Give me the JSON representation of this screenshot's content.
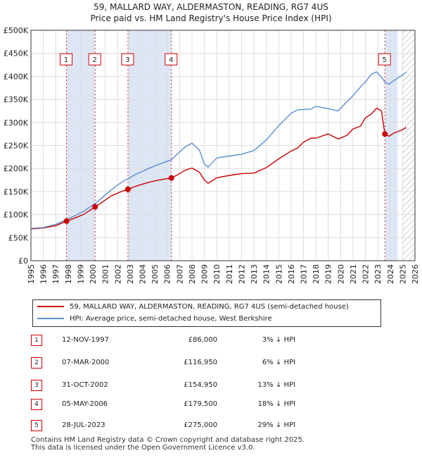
{
  "title_line1": "59, MALLARD WAY, ALDERMASTON, READING, RG7 4US",
  "title_line2": "Price paid vs. HM Land Registry's House Price Index (HPI)",
  "colors": {
    "property": "#cc0000",
    "hpi": "#5b8ed6",
    "shade": "#dde6f5",
    "marker_box": "#cc0000",
    "grid": "#dddddd"
  },
  "chart_data": {
    "type": "line",
    "xlim": [
      1995,
      2026
    ],
    "ylim": [
      0,
      500000
    ],
    "x_ticks": [
      1995,
      1996,
      1997,
      1998,
      1999,
      2000,
      2001,
      2002,
      2003,
      2004,
      2005,
      2006,
      2007,
      2008,
      2009,
      2010,
      2011,
      2012,
      2013,
      2014,
      2015,
      2016,
      2017,
      2018,
      2019,
      2020,
      2021,
      2022,
      2023,
      2024,
      2025,
      2026
    ],
    "y_ticks": [
      {
        "value": 0,
        "label": "£0"
      },
      {
        "value": 50000,
        "label": "£50K"
      },
      {
        "value": 100000,
        "label": "£100K"
      },
      {
        "value": 150000,
        "label": "£150K"
      },
      {
        "value": 200000,
        "label": "£200K"
      },
      {
        "value": 250000,
        "label": "£250K"
      },
      {
        "value": 300000,
        "label": "£300K"
      },
      {
        "value": 350000,
        "label": "£350K"
      },
      {
        "value": 400000,
        "label": "£400K"
      },
      {
        "value": 450000,
        "label": "£450K"
      },
      {
        "value": 500000,
        "label": "£500K"
      }
    ],
    "shaded_ranges": [
      [
        1997.87,
        2000.18
      ],
      [
        2002.83,
        2006.34
      ],
      [
        2023.57,
        2024.6
      ]
    ],
    "hatched_range": [
      2025.0,
      2026.0
    ],
    "series": [
      {
        "name": "59, MALLARD WAY, ALDERMASTON, READING, RG7 4US (semi-detached house)",
        "key": "property",
        "x": [
          1995.0,
          1996.0,
          1997.0,
          1997.87,
          1998.5,
          1999.3,
          2000.18,
          2000.8,
          2001.5,
          2002.3,
          2002.83,
          2003.5,
          2004.5,
          2005.3,
          2006.34,
          2006.8,
          2007.5,
          2008.0,
          2008.6,
          2009.0,
          2009.3,
          2010.0,
          2011.0,
          2012.0,
          2013.0,
          2014.0,
          2015.0,
          2016.0,
          2016.5,
          2017.0,
          2017.6,
          2018.0,
          2019.0,
          2019.8,
          2020.5,
          2021.0,
          2021.6,
          2022.0,
          2022.5,
          2022.9,
          2023.3,
          2023.57,
          2023.9,
          2024.3,
          2024.8,
          2025.3
        ],
        "y": [
          69000,
          71000,
          76000,
          86000,
          92000,
          101000,
          116950,
          128000,
          141000,
          150000,
          154950,
          162000,
          170000,
          175000,
          179500,
          186000,
          197000,
          201000,
          192000,
          175000,
          168000,
          180000,
          185000,
          189000,
          190000,
          202000,
          221000,
          238000,
          244000,
          257000,
          266000,
          266000,
          275000,
          264000,
          272000,
          286000,
          292000,
          310000,
          319000,
          331000,
          325000,
          275000,
          270000,
          277000,
          282000,
          289000
        ]
      },
      {
        "name": "HPI: Average price, semi-detached house, West Berkshire",
        "key": "hpi",
        "x": [
          1995.0,
          1996.0,
          1997.0,
          1997.87,
          1998.5,
          1999.3,
          2000.18,
          2000.8,
          2001.5,
          2002.3,
          2002.83,
          2003.5,
          2004.5,
          2005.3,
          2006.34,
          2006.8,
          2007.5,
          2008.0,
          2008.6,
          2009.0,
          2009.3,
          2010.0,
          2011.0,
          2012.0,
          2013.0,
          2014.0,
          2015.0,
          2016.0,
          2016.5,
          2017.0,
          2017.6,
          2018.0,
          2019.0,
          2019.8,
          2020.5,
          2021.0,
          2021.6,
          2022.0,
          2022.5,
          2022.9,
          2023.3,
          2023.57,
          2023.9,
          2024.3,
          2024.8,
          2025.3
        ],
        "y": [
          70000,
          72000,
          79000,
          89000,
          97000,
          108000,
          124000,
          138000,
          154000,
          170000,
          178000,
          188000,
          200000,
          209000,
          219000,
          231000,
          248000,
          255000,
          240000,
          210000,
          203000,
          223000,
          227000,
          231000,
          239000,
          262000,
          293000,
          320000,
          327000,
          328000,
          329000,
          335000,
          330000,
          325000,
          345000,
          358000,
          377000,
          388000,
          405000,
          410000,
          398000,
          388000,
          383000,
          391000,
          400000,
          409000
        ]
      }
    ],
    "sales": [
      {
        "num": "1",
        "x": 1997.87,
        "y": 86000
      },
      {
        "num": "2",
        "x": 2000.18,
        "y": 116950
      },
      {
        "num": "3",
        "x": 2002.83,
        "y": 154950
      },
      {
        "num": "4",
        "x": 2006.34,
        "y": 179500
      },
      {
        "num": "5",
        "x": 2023.57,
        "y": 275000
      }
    ],
    "marker_box_y": 437000
  },
  "legend": {
    "property_label": "59, MALLARD WAY, ALDERMASTON, READING, RG7 4US (semi-detached house)",
    "hpi_label": "HPI: Average price, semi-detached house, West Berkshire"
  },
  "sales_table": [
    {
      "num": "1",
      "date": "12-NOV-1997",
      "price": "£86,000",
      "hpi": "3% ↓ HPI"
    },
    {
      "num": "2",
      "date": "07-MAR-2000",
      "price": "£116,950",
      "hpi": "6% ↓ HPI"
    },
    {
      "num": "3",
      "date": "31-OCT-2002",
      "price": "£154,950",
      "hpi": "13% ↓ HPI"
    },
    {
      "num": "4",
      "date": "05-MAY-2006",
      "price": "£179,500",
      "hpi": "18% ↓ HPI"
    },
    {
      "num": "5",
      "date": "28-JUL-2023",
      "price": "£275,000",
      "hpi": "29% ↓ HPI"
    }
  ],
  "footer_line1": "Contains HM Land Registry data © Crown copyright and database right 2025.",
  "footer_line2": "This data is licensed under the Open Government Licence v3.0."
}
